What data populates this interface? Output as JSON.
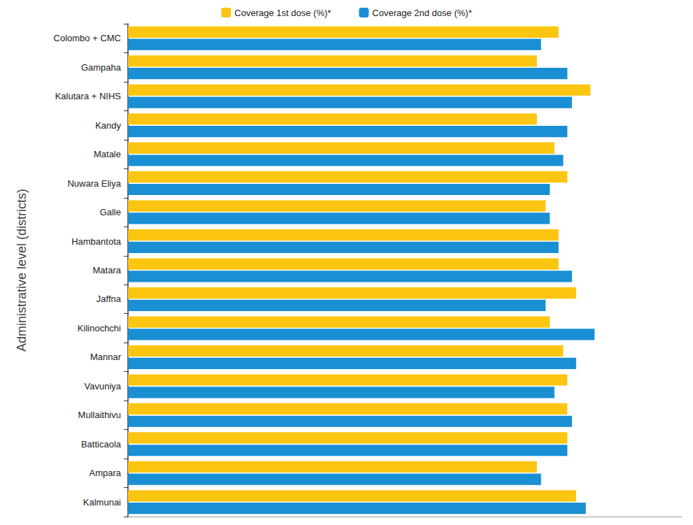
{
  "chart_data": {
    "type": "bar",
    "orientation": "horizontal",
    "y_label": "Administrative level (districts)",
    "categories": [
      "Colombo + CMC",
      "Gampaha",
      "Kalutara + NIHS",
      "Kandy",
      "Matale",
      "Nuwara Eliya",
      "Galle",
      "Hambantota",
      "Matara",
      "Jaffna",
      "Kilinochchi",
      "Mannar",
      "Vavuniya",
      "Mullaithivu",
      "Batticaola",
      "Ampara",
      "Kalmunai"
    ],
    "series": [
      {
        "name": "Coverage 1st dose (%)*",
        "color": "#fcc512",
        "values": [
          93.3,
          88.6,
          100.2,
          88.6,
          92.4,
          95.2,
          90.5,
          93.3,
          93.3,
          97.1,
          91.4,
          94.3,
          95.2,
          95.2,
          95.2,
          88.6,
          97.1
        ]
      },
      {
        "name": "Coverage 2nd dose (%)*",
        "color": "#1a8fd3",
        "values": [
          89.5,
          95.2,
          96.2,
          95.2,
          94.3,
          91.4,
          91.4,
          93.3,
          96.2,
          90.5,
          101.1,
          97.1,
          92.4,
          96.2,
          95.2,
          89.5,
          99.2
        ]
      }
    ],
    "xlim": [
      0,
      120
    ],
    "tick_labels": "y",
    "grid": false,
    "legend": "top"
  }
}
